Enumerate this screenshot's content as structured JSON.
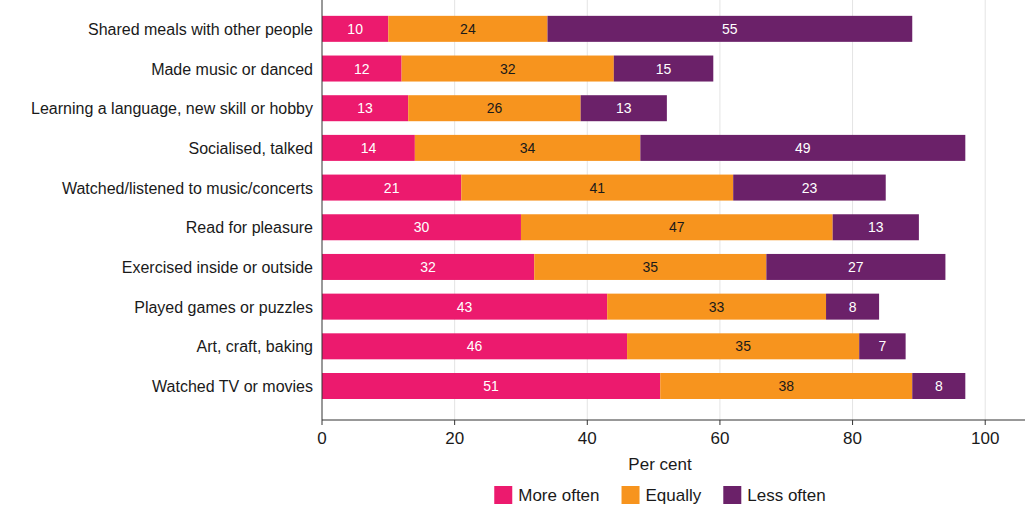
{
  "chart_data": {
    "type": "bar",
    "orientation": "horizontal",
    "stacked": true,
    "categories": [
      "Shared meals with other people",
      "Made music or danced",
      "Learning a language, new skill or hobby",
      "Socialised, talked",
      "Watched/listened to music/concerts",
      "Read for pleasure",
      "Exercised inside or outside",
      "Played games or puzzles",
      "Art, craft, baking",
      "Watched TV or movies"
    ],
    "series": [
      {
        "name": "More often",
        "color": "#ec1a6e",
        "values": [
          10,
          12,
          13,
          14,
          21,
          30,
          32,
          43,
          46,
          51
        ]
      },
      {
        "name": "Equally",
        "color": "#f7941e",
        "values": [
          24,
          32,
          26,
          34,
          41,
          47,
          35,
          33,
          35,
          38
        ]
      },
      {
        "name": "Less often",
        "color": "#6b2169",
        "values": [
          55,
          15,
          13,
          49,
          23,
          13,
          27,
          8,
          7,
          8
        ]
      }
    ],
    "x_label": "Per cent",
    "xlim": [
      0,
      106
    ],
    "xticks": [
      0,
      20,
      40,
      60,
      80,
      100
    ],
    "grid": true,
    "data_labels": true,
    "legend": "bottom"
  }
}
